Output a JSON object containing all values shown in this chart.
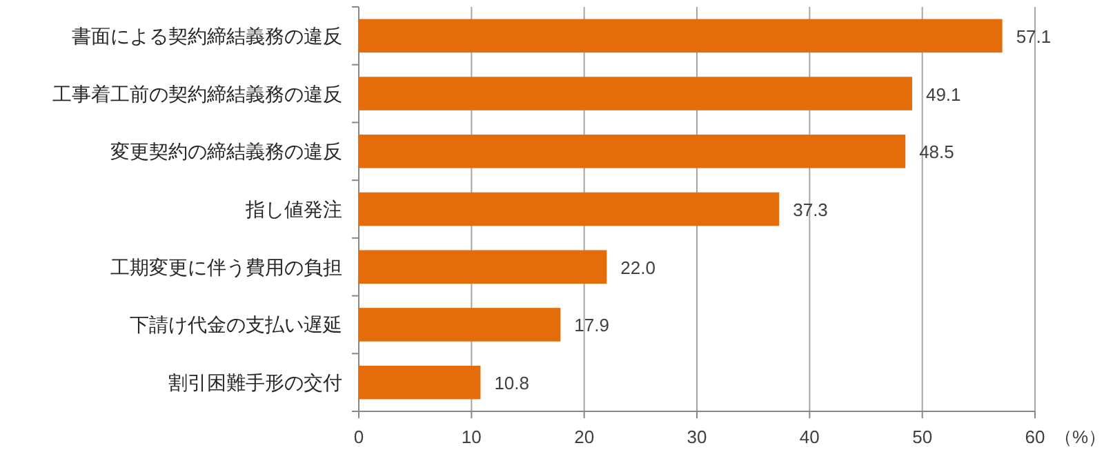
{
  "chart_data": {
    "type": "bar",
    "orientation": "horizontal",
    "categories": [
      "書面による契約締結義務の違反",
      "工事着工前の契約締結義務の違反",
      "変更契約の締結義務の違反",
      "指し値発注",
      "工期変更に伴う費用の負担",
      "下請け代金の支払い遅延",
      "割引困難手形の交付"
    ],
    "values": [
      57.1,
      49.1,
      48.5,
      37.3,
      22.0,
      17.9,
      10.8
    ],
    "value_labels": [
      "57.1",
      "49.1",
      "48.5",
      "37.3",
      "22.0",
      "17.9",
      "10.8"
    ],
    "color": "#e46c0a",
    "xlabel": "（%）",
    "xlim": [
      0,
      60
    ],
    "xticks": [
      0,
      10,
      20,
      30,
      40,
      50,
      60
    ],
    "grid": "x"
  }
}
